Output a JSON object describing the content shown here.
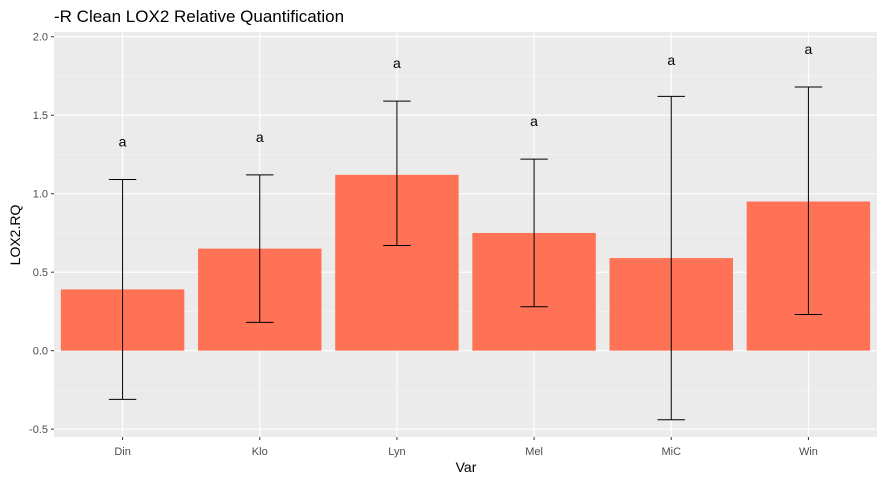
{
  "chart_data": {
    "type": "bar",
    "title": "-R Clean LOX2 Relative Quantification",
    "xlabel": "Var",
    "ylabel": "LOX2.RQ",
    "categories": [
      "Din",
      "Klo",
      "Lyn",
      "Mel",
      "MiC",
      "Win"
    ],
    "values": [
      0.39,
      0.65,
      1.12,
      0.75,
      0.59,
      0.95
    ],
    "error_low": [
      -0.31,
      0.18,
      0.67,
      0.28,
      -0.44,
      0.23
    ],
    "error_high": [
      1.09,
      1.12,
      1.59,
      1.22,
      1.62,
      1.68
    ],
    "significance_labels": [
      "a",
      "a",
      "a",
      "a",
      "a",
      "a"
    ],
    "label_y": [
      1.3,
      1.33,
      1.8,
      1.43,
      1.82,
      1.89
    ],
    "ylim": [
      -0.55,
      2.03
    ],
    "y_ticks": [
      -0.5,
      0.0,
      0.5,
      1.0,
      1.5,
      2.0
    ],
    "y_tick_labels": [
      "-0.5",
      "0.0",
      "0.5",
      "1.0",
      "1.5",
      "2.0"
    ],
    "grid": true,
    "legend": "none",
    "colors": {
      "bar": "#ff7256",
      "panel": "#ebebeb",
      "grid_major": "#ffffff",
      "grid_minor": "#f5f5f5",
      "errorbar": "#000000"
    }
  }
}
